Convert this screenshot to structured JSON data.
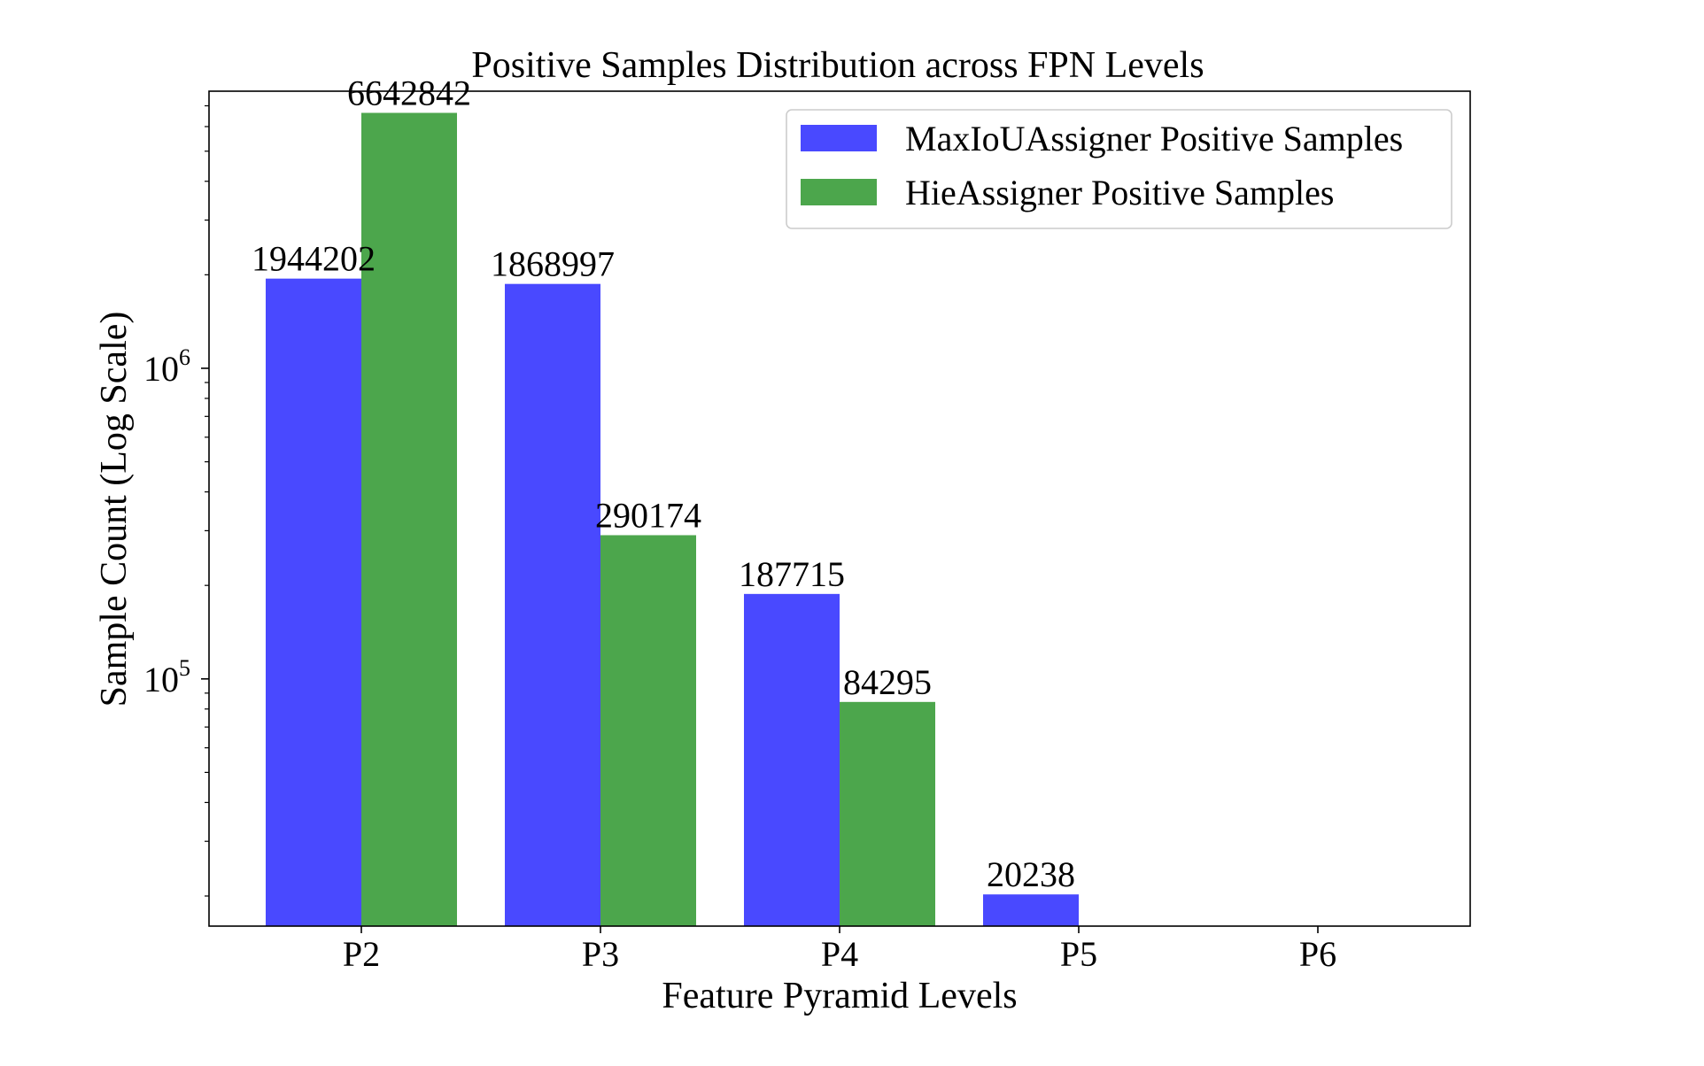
{
  "chart_data": {
    "type": "bar",
    "title": "Positive Samples Distribution across FPN Levels",
    "xlabel": "Feature Pyramid Levels",
    "ylabel": "Sample Count (Log Scale)",
    "yscale": "log",
    "ylim": [
      16000,
      7800000
    ],
    "categories": [
      "P2",
      "P3",
      "P4",
      "P5",
      "P6"
    ],
    "series": [
      {
        "name": "MaxIoUAssigner Positive Samples",
        "color": "#4949ff",
        "values": [
          1944202,
          1868997,
          187715,
          20238,
          null
        ],
        "labels": [
          "1944202",
          "1868997",
          "187715",
          "20238",
          ""
        ]
      },
      {
        "name": "HieAssigner Positive Samples",
        "color": "#4ca64c",
        "values": [
          6642842,
          290174,
          84295,
          null,
          null
        ],
        "labels": [
          "6642842",
          "290174",
          "84295",
          "",
          ""
        ]
      }
    ],
    "yticks": [
      {
        "value": 100000,
        "base": "10",
        "exp": "5"
      },
      {
        "value": 1000000,
        "base": "10",
        "exp": "6"
      }
    ],
    "legend_position": "top-right"
  }
}
